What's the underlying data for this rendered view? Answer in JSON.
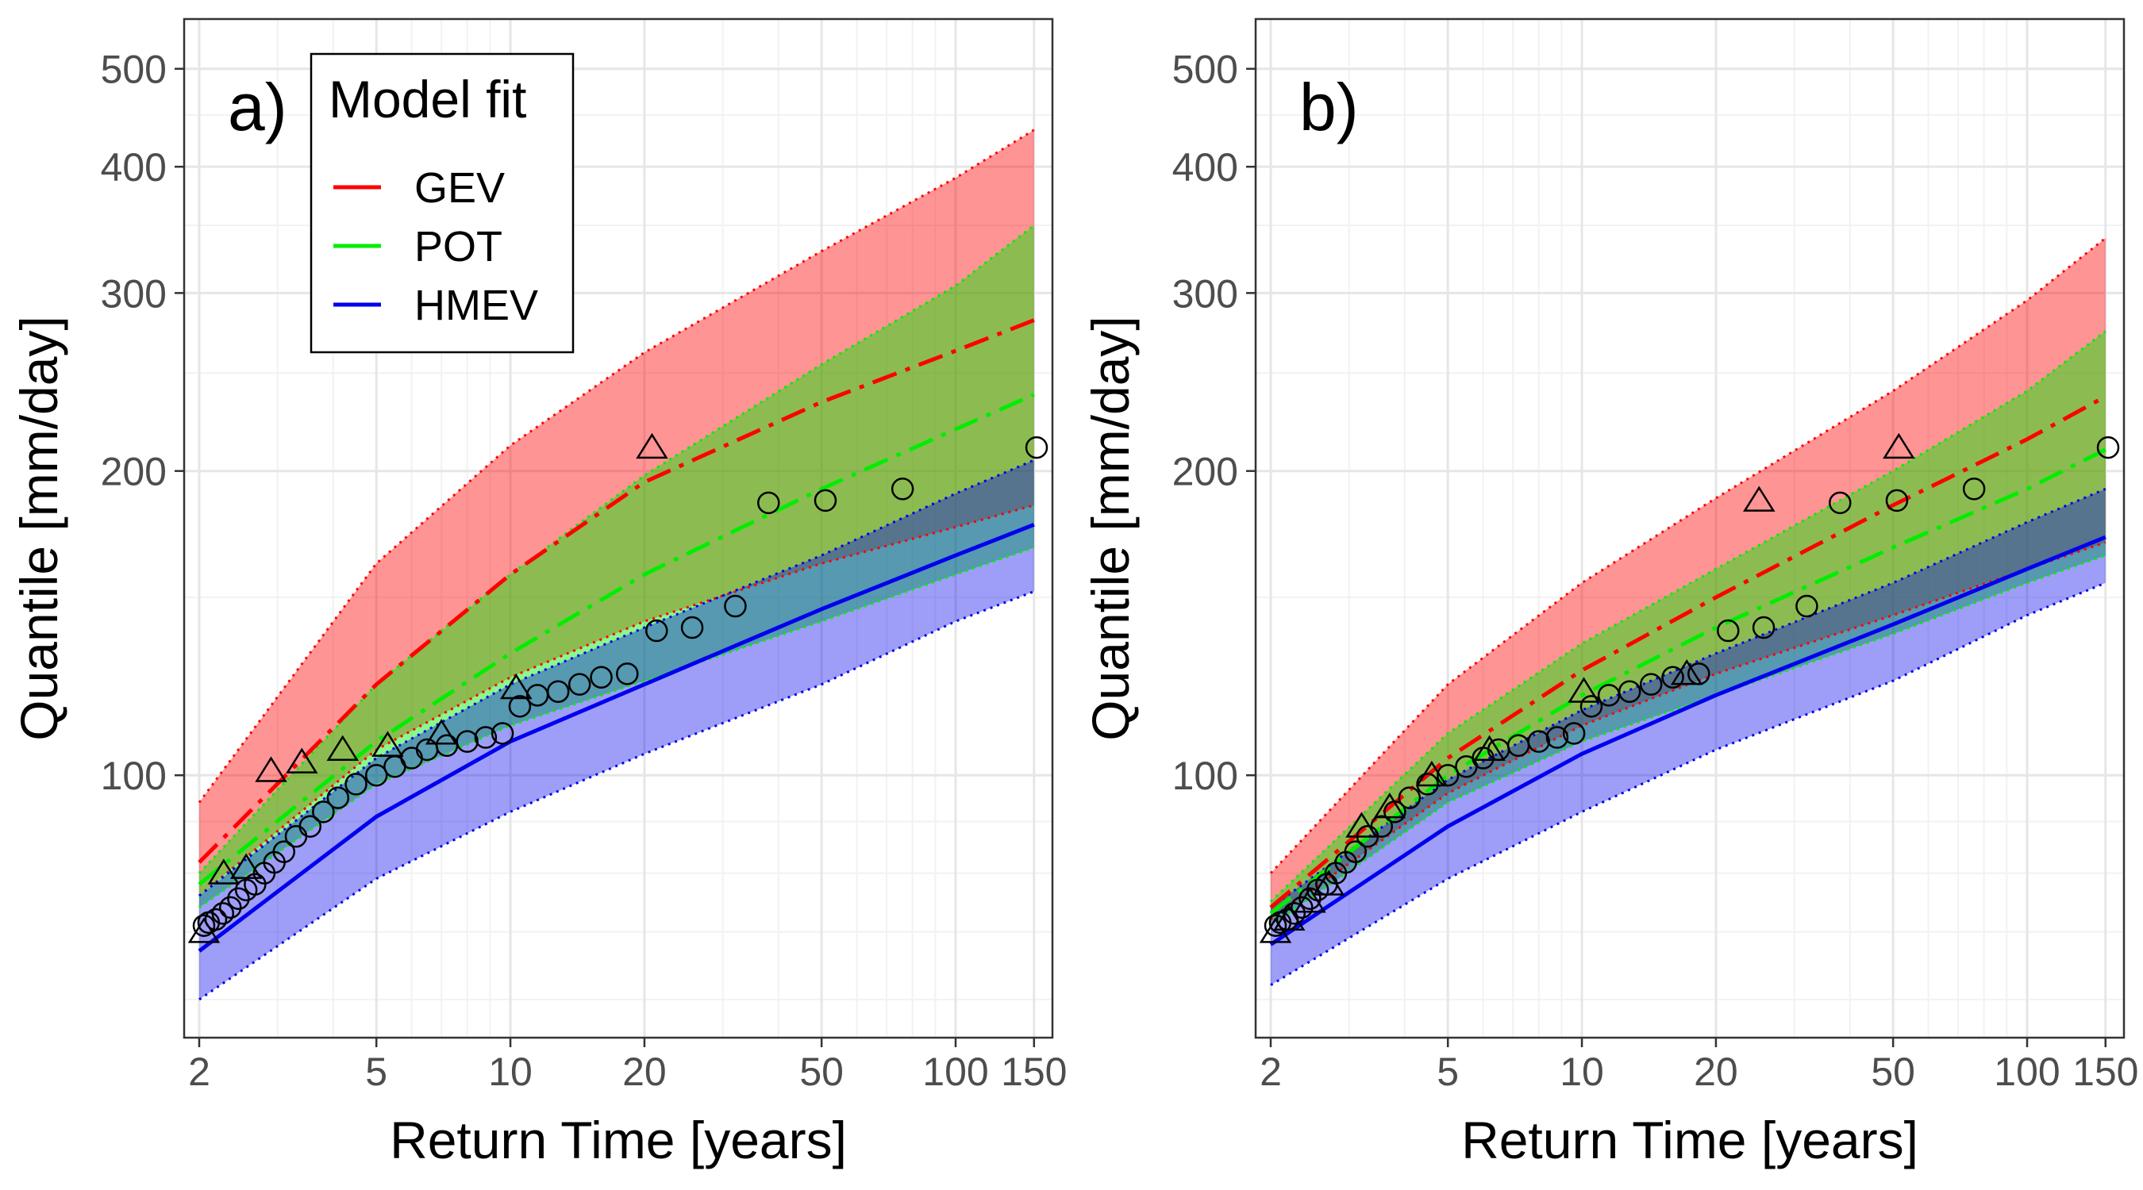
{
  "chart_data": [
    {
      "type": "line",
      "panel_label": "a)",
      "xlabel": "Return Time [years]",
      "ylabel": "Quantile [mm/day]",
      "x_scale": "log",
      "y_scale": "log",
      "xlim": [
        1.85,
        165
      ],
      "ylim": [
        55,
        560
      ],
      "x_ticks": [
        2,
        5,
        10,
        20,
        50,
        100,
        150
      ],
      "x_tick_labels": [
        "2",
        "5",
        "10",
        "20",
        "50",
        "100",
        "150"
      ],
      "y_ticks": [
        100,
        200,
        300,
        400,
        500
      ],
      "y_tick_labels": [
        "100",
        "200",
        "300",
        "400",
        "500"
      ],
      "grid": true,
      "legend": {
        "title": "Model fit",
        "position": "top-left",
        "entries": [
          {
            "label": "GEV",
            "color": "#ff0000"
          },
          {
            "label": "POT",
            "color": "#00ee00"
          },
          {
            "label": "HMEV",
            "color": "#0000ee"
          }
        ]
      },
      "series": [
        {
          "name": "GEV",
          "color": "#ff0000",
          "x": [
            2,
            5,
            10,
            20,
            50,
            100,
            150
          ],
          "values": [
            82,
            123,
            158,
            195,
            234,
            263,
            282
          ],
          "lower": [
            76,
            106,
            125,
            142,
            162,
            176,
            185
          ],
          "upper": [
            94,
            162,
            212,
            262,
            330,
            390,
            435
          ]
        },
        {
          "name": "POT",
          "color": "#00ee00",
          "x": [
            2,
            5,
            10,
            20,
            50,
            100,
            150
          ],
          "values": [
            78,
            108,
            132,
            158,
            192,
            220,
            238
          ],
          "lower": [
            74,
            98,
            112,
            124,
            142,
            158,
            168
          ],
          "upper": [
            80,
            123,
            158,
            198,
            255,
            305,
            350
          ]
        },
        {
          "name": "HMEV",
          "color": "#0000ee",
          "x": [
            2,
            5,
            10,
            20,
            50,
            100,
            150
          ],
          "values": [
            67,
            91,
            108,
            123,
            146,
            165,
            177
          ],
          "lower": [
            60,
            79,
            92,
            105,
            123,
            142,
            152
          ],
          "upper": [
            76,
            104,
            123,
            140,
            165,
            190,
            205
          ]
        }
      ],
      "observations_annual_max": [
        {
          "x": 2.05,
          "y": 70
        },
        {
          "x": 2.27,
          "y": 80
        },
        {
          "x": 2.55,
          "y": 81
        },
        {
          "x": 2.9,
          "y": 101
        },
        {
          "x": 3.4,
          "y": 103
        },
        {
          "x": 4.2,
          "y": 106
        },
        {
          "x": 5.3,
          "y": 107
        },
        {
          "x": 7.0,
          "y": 110
        },
        {
          "x": 10.3,
          "y": 122
        },
        {
          "x": 20.8,
          "y": 211
        }
      ],
      "observations_all": [
        {
          "x": 2.05,
          "y": 71
        },
        {
          "x": 2.1,
          "y": 71.5
        },
        {
          "x": 2.18,
          "y": 72
        },
        {
          "x": 2.26,
          "y": 73
        },
        {
          "x": 2.35,
          "y": 74
        },
        {
          "x": 2.45,
          "y": 75.5
        },
        {
          "x": 2.55,
          "y": 77
        },
        {
          "x": 2.67,
          "y": 78
        },
        {
          "x": 2.8,
          "y": 80
        },
        {
          "x": 2.95,
          "y": 82
        },
        {
          "x": 3.1,
          "y": 84
        },
        {
          "x": 3.3,
          "y": 87
        },
        {
          "x": 3.55,
          "y": 89
        },
        {
          "x": 3.8,
          "y": 92
        },
        {
          "x": 4.1,
          "y": 95
        },
        {
          "x": 4.5,
          "y": 98
        },
        {
          "x": 5.0,
          "y": 100
        },
        {
          "x": 5.5,
          "y": 102
        },
        {
          "x": 6.0,
          "y": 104
        },
        {
          "x": 6.5,
          "y": 106
        },
        {
          "x": 7.2,
          "y": 107
        },
        {
          "x": 8.0,
          "y": 108
        },
        {
          "x": 8.8,
          "y": 109
        },
        {
          "x": 9.6,
          "y": 110
        },
        {
          "x": 10.5,
          "y": 117
        },
        {
          "x": 11.5,
          "y": 120
        },
        {
          "x": 12.8,
          "y": 121
        },
        {
          "x": 14.3,
          "y": 123
        },
        {
          "x": 16.0,
          "y": 125
        },
        {
          "x": 18.3,
          "y": 126
        },
        {
          "x": 21.3,
          "y": 139
        },
        {
          "x": 25.6,
          "y": 140
        },
        {
          "x": 32.0,
          "y": 147
        },
        {
          "x": 38.0,
          "y": 186
        },
        {
          "x": 51.0,
          "y": 187
        },
        {
          "x": 76.0,
          "y": 192
        },
        {
          "x": 152.0,
          "y": 211
        }
      ]
    },
    {
      "type": "line",
      "panel_label": "b)",
      "xlabel": "Return Time [years]",
      "ylabel": "Quantile [mm/day]",
      "x_scale": "log",
      "y_scale": "log",
      "xlim": [
        1.85,
        165
      ],
      "ylim": [
        55,
        560
      ],
      "x_ticks": [
        2,
        5,
        10,
        20,
        50,
        100,
        150
      ],
      "x_tick_labels": [
        "2",
        "5",
        "10",
        "20",
        "50",
        "100",
        "150"
      ],
      "y_ticks": [
        100,
        200,
        300,
        400,
        500
      ],
      "y_tick_labels": [
        "100",
        "200",
        "300",
        "400",
        "500"
      ],
      "grid": true,
      "series": [
        {
          "name": "GEV",
          "color": "#ff0000",
          "x": [
            2,
            5,
            10,
            20,
            50,
            100,
            150
          ],
          "values": [
            74,
            104,
            127,
            150,
            185,
            215,
            237
          ],
          "lower": [
            72,
            96,
            112,
            126,
            144,
            160,
            170
          ],
          "upper": [
            80,
            123,
            155,
            188,
            240,
            295,
            340
          ]
        },
        {
          "name": "POT",
          "color": "#00ee00",
          "x": [
            2,
            5,
            10,
            20,
            50,
            100,
            150
          ],
          "values": [
            73,
            100,
            120,
            140,
            168,
            192,
            210
          ],
          "lower": [
            71,
            94,
            108,
            120,
            138,
            155,
            165
          ],
          "upper": [
            75,
            110,
            135,
            160,
            200,
            240,
            275
          ]
        },
        {
          "name": "HMEV",
          "color": "#0000ee",
          "x": [
            2,
            5,
            10,
            20,
            50,
            100,
            150
          ],
          "values": [
            68,
            89,
            105,
            120,
            141,
            160,
            172
          ],
          "lower": [
            62,
            79,
            92,
            106,
            124,
            144,
            155
          ],
          "upper": [
            74,
            99,
            116,
            132,
            155,
            178,
            192
          ]
        }
      ],
      "observations_annual_max": [
        {
          "x": 2.05,
          "y": 70
        },
        {
          "x": 2.2,
          "y": 72
        },
        {
          "x": 2.45,
          "y": 75
        },
        {
          "x": 2.7,
          "y": 78
        },
        {
          "x": 3.2,
          "y": 89
        },
        {
          "x": 3.7,
          "y": 93
        },
        {
          "x": 4.6,
          "y": 100
        },
        {
          "x": 6.2,
          "y": 106
        },
        {
          "x": 10.1,
          "y": 121
        },
        {
          "x": 17.2,
          "y": 126
        },
        {
          "x": 25.0,
          "y": 187
        },
        {
          "x": 51.5,
          "y": 211
        }
      ],
      "observations_all": [
        {
          "x": 2.05,
          "y": 71
        },
        {
          "x": 2.1,
          "y": 71.5
        },
        {
          "x": 2.18,
          "y": 72
        },
        {
          "x": 2.26,
          "y": 73
        },
        {
          "x": 2.35,
          "y": 74
        },
        {
          "x": 2.45,
          "y": 75.5
        },
        {
          "x": 2.55,
          "y": 77
        },
        {
          "x": 2.67,
          "y": 78
        },
        {
          "x": 2.8,
          "y": 80
        },
        {
          "x": 2.95,
          "y": 82
        },
        {
          "x": 3.1,
          "y": 84
        },
        {
          "x": 3.3,
          "y": 87
        },
        {
          "x": 3.55,
          "y": 89
        },
        {
          "x": 3.8,
          "y": 92
        },
        {
          "x": 4.1,
          "y": 95
        },
        {
          "x": 4.5,
          "y": 98
        },
        {
          "x": 5.0,
          "y": 100
        },
        {
          "x": 5.5,
          "y": 102
        },
        {
          "x": 6.0,
          "y": 104
        },
        {
          "x": 6.5,
          "y": 106
        },
        {
          "x": 7.2,
          "y": 107
        },
        {
          "x": 8.0,
          "y": 108
        },
        {
          "x": 8.8,
          "y": 109
        },
        {
          "x": 9.6,
          "y": 110
        },
        {
          "x": 10.5,
          "y": 117
        },
        {
          "x": 11.5,
          "y": 120
        },
        {
          "x": 12.8,
          "y": 121
        },
        {
          "x": 14.3,
          "y": 123
        },
        {
          "x": 16.0,
          "y": 125
        },
        {
          "x": 18.3,
          "y": 126
        },
        {
          "x": 21.3,
          "y": 139
        },
        {
          "x": 25.6,
          "y": 140
        },
        {
          "x": 32.0,
          "y": 147
        },
        {
          "x": 38.0,
          "y": 186
        },
        {
          "x": 51.0,
          "y": 187
        },
        {
          "x": 76.0,
          "y": 192
        },
        {
          "x": 152.0,
          "y": 211
        }
      ]
    }
  ]
}
